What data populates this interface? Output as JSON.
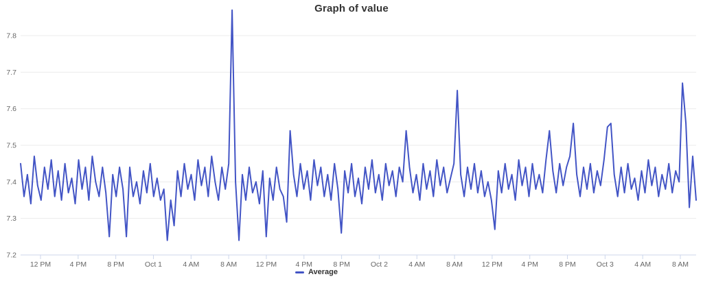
{
  "title": "Graph of value",
  "legend": {
    "items": [
      {
        "label": "Average",
        "color": "#4254c5"
      }
    ]
  },
  "colors": {
    "line": "#4254c5",
    "grid": "#ebebeb",
    "axis_line": "#ccd6eb",
    "tick": "#ccd6eb",
    "label": "#666666",
    "title": "#333333",
    "legend_text": "#333333",
    "background": "#ffffff"
  },
  "chart_data": {
    "type": "line",
    "title": "Graph of value",
    "x_tick_labels": [
      "12 PM",
      "4 PM",
      "8 PM",
      "Oct 1",
      "4 AM",
      "8 AM",
      "12 PM",
      "4 PM",
      "8 PM",
      "Oct 2",
      "4 AM",
      "8 AM",
      "12 PM",
      "4 PM",
      "8 PM",
      "Oct 3",
      "4 AM",
      "8 AM"
    ],
    "y_tick_labels": [
      "7.2",
      "7.3",
      "7.4",
      "7.5",
      "7.6",
      "7.7",
      "7.8"
    ],
    "ylim": [
      7.2,
      7.8
    ],
    "grid": "horizontal",
    "legend_position": "bottom-center",
    "series": [
      {
        "name": "Average",
        "values": [
          7.45,
          7.36,
          7.42,
          7.34,
          7.47,
          7.39,
          7.35,
          7.44,
          7.38,
          7.46,
          7.36,
          7.43,
          7.35,
          7.45,
          7.37,
          7.41,
          7.34,
          7.46,
          7.38,
          7.44,
          7.35,
          7.47,
          7.4,
          7.36,
          7.44,
          7.37,
          7.25,
          7.42,
          7.36,
          7.44,
          7.38,
          7.25,
          7.44,
          7.36,
          7.4,
          7.34,
          7.43,
          7.37,
          7.45,
          7.36,
          7.41,
          7.35,
          7.38,
          7.24,
          7.35,
          7.28,
          7.43,
          7.36,
          7.45,
          7.38,
          7.42,
          7.35,
          7.46,
          7.39,
          7.44,
          7.36,
          7.47,
          7.4,
          7.35,
          7.44,
          7.38,
          7.45,
          7.87,
          7.4,
          7.24,
          7.42,
          7.35,
          7.44,
          7.37,
          7.4,
          7.34,
          7.43,
          7.25,
          7.41,
          7.35,
          7.44,
          7.38,
          7.36,
          7.29,
          7.54,
          7.42,
          7.36,
          7.45,
          7.38,
          7.43,
          7.35,
          7.46,
          7.39,
          7.44,
          7.36,
          7.42,
          7.35,
          7.45,
          7.38,
          7.26,
          7.43,
          7.37,
          7.45,
          7.36,
          7.41,
          7.34,
          7.44,
          7.38,
          7.46,
          7.37,
          7.42,
          7.35,
          7.45,
          7.39,
          7.43,
          7.36,
          7.44,
          7.4,
          7.54,
          7.44,
          7.37,
          7.42,
          7.35,
          7.45,
          7.38,
          7.43,
          7.36,
          7.46,
          7.39,
          7.44,
          7.37,
          7.41,
          7.45,
          7.65,
          7.42,
          7.36,
          7.44,
          7.38,
          7.45,
          7.37,
          7.43,
          7.36,
          7.4,
          7.35,
          7.27,
          7.43,
          7.37,
          7.45,
          7.38,
          7.42,
          7.35,
          7.46,
          7.39,
          7.44,
          7.36,
          7.45,
          7.38,
          7.42,
          7.37,
          7.46,
          7.54,
          7.43,
          7.37,
          7.45,
          7.39,
          7.44,
          7.47,
          7.56,
          7.42,
          7.36,
          7.44,
          7.38,
          7.45,
          7.37,
          7.43,
          7.39,
          7.46,
          7.55,
          7.56,
          7.42,
          7.36,
          7.44,
          7.37,
          7.45,
          7.38,
          7.41,
          7.35,
          7.43,
          7.37,
          7.46,
          7.39,
          7.44,
          7.36,
          7.42,
          7.38,
          7.45,
          7.37,
          7.43,
          7.4,
          7.67,
          7.56,
          7.33,
          7.47,
          7.35
        ]
      }
    ]
  }
}
